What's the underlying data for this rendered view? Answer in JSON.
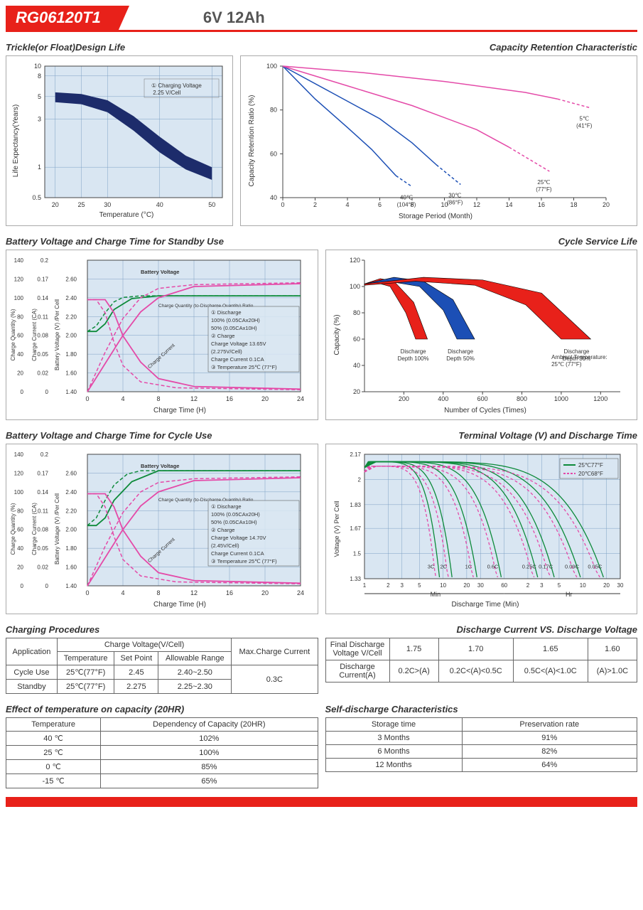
{
  "header": {
    "model": "RG06120T1",
    "spec": "6V  12Ah"
  },
  "colors": {
    "red": "#e8211a",
    "navy": "#1d2c6b",
    "green": "#0d8a3a",
    "magenta": "#e44aa8",
    "blue": "#1c4fb5",
    "black": "#000",
    "grid_bg": "#d9e6f2",
    "grid_line": "#7da0c4",
    "border": "#888"
  },
  "chart1": {
    "title": "Trickle(or Float)Design Life",
    "xlabel": "Temperature (°C)",
    "ylabel": "Life Expectancy(Years)",
    "xticks": [
      20,
      25,
      30,
      40,
      50
    ],
    "yticks": [
      0.5,
      1,
      3,
      5,
      8,
      10
    ],
    "note": "① Charging Voltage\n   2.25 V/Cell",
    "band_upper": [
      [
        20,
        5.5
      ],
      [
        25,
        5.3
      ],
      [
        30,
        4.6
      ],
      [
        35,
        3.2
      ],
      [
        40,
        2.0
      ],
      [
        45,
        1.3
      ],
      [
        50,
        1.0
      ]
    ],
    "band_lower": [
      [
        20,
        4.4
      ],
      [
        25,
        4.2
      ],
      [
        30,
        3.5
      ],
      [
        35,
        2.3
      ],
      [
        40,
        1.4
      ],
      [
        45,
        0.95
      ],
      [
        50,
        0.75
      ]
    ],
    "band_color": "#1d2c6b"
  },
  "chart2": {
    "title": "Capacity Retention Characteristic",
    "xlabel": "Storage Period (Month)",
    "ylabel": "Capacity Retention Ratio (%)",
    "xticks": [
      0,
      2,
      4,
      6,
      8,
      10,
      12,
      14,
      16,
      18,
      20
    ],
    "yticks": [
      40,
      60,
      80,
      100
    ],
    "series": [
      {
        "label": "40℃\n(104°F)",
        "color": "#1c4fb5",
        "dash": false,
        "pts": [
          [
            0,
            100
          ],
          [
            2,
            85
          ],
          [
            4,
            72
          ],
          [
            5.5,
            62
          ],
          [
            7,
            50
          ]
        ],
        "ext": [
          [
            7,
            50
          ],
          [
            8,
            45
          ]
        ]
      },
      {
        "label": "30℃\n(86°F)",
        "color": "#1c4fb5",
        "dash": false,
        "pts": [
          [
            0,
            100
          ],
          [
            3,
            88
          ],
          [
            6,
            76
          ],
          [
            8,
            65
          ],
          [
            9.5,
            55
          ]
        ],
        "ext": [
          [
            9.5,
            55
          ],
          [
            11,
            46
          ]
        ]
      },
      {
        "label": "25℃\n(77°F)",
        "color": "#e44aa8",
        "dash": false,
        "pts": [
          [
            0,
            100
          ],
          [
            4,
            91
          ],
          [
            8,
            82
          ],
          [
            12,
            71
          ],
          [
            14,
            63
          ]
        ],
        "ext": [
          [
            14,
            63
          ],
          [
            16.5,
            52
          ]
        ]
      },
      {
        "label": "5℃\n(41°F)",
        "color": "#e44aa8",
        "dash": false,
        "pts": [
          [
            0,
            100
          ],
          [
            5,
            97
          ],
          [
            10,
            93
          ],
          [
            15,
            88
          ],
          [
            17,
            85
          ]
        ],
        "ext": [
          [
            17,
            85
          ],
          [
            19,
            81
          ]
        ]
      }
    ]
  },
  "chart3": {
    "title": "Battery Voltage and Charge Time for Standby Use",
    "xlabel": "Charge Time (H)",
    "ylabels": [
      "Charge Quantity (%)",
      "Charge Current (CA)",
      "Battery Voltage (V) /Per Cell"
    ],
    "xticks": [
      0,
      4,
      8,
      12,
      16,
      20,
      24
    ],
    "y1ticks": [
      0,
      20,
      40,
      60,
      80,
      100,
      120,
      140
    ],
    "y2ticks": [
      0,
      0.02,
      0.05,
      0.08,
      0.11,
      0.14,
      0.17,
      0.2
    ],
    "y3ticks": [
      1.4,
      1.6,
      1.8,
      2.0,
      2.2,
      2.4,
      2.6
    ],
    "annotations": [
      "Battery Voltage",
      "Charge Quantity (to-Discharge Quantity) Ratio",
      "Charge Current"
    ],
    "legend": [
      "① Discharge",
      "   100% (0.05CAx20H)",
      "   50% (0.05CAx10H)",
      "② Charge",
      "   Charge Voltage 13.65V",
      "   (2.275V/Cell)",
      "   Charge Current 0.1CA",
      "③ Temperature 25℃ (77°F)"
    ],
    "voltage_solid": {
      "color": "#0d8a3a",
      "pts": [
        [
          0,
          1.95
        ],
        [
          1,
          1.95
        ],
        [
          2,
          2.02
        ],
        [
          3,
          2.15
        ],
        [
          5,
          2.25
        ],
        [
          8,
          2.275
        ],
        [
          24,
          2.275
        ]
      ]
    },
    "voltage_dash": {
      "color": "#0d8a3a",
      "pts": [
        [
          0,
          1.95
        ],
        [
          1,
          2.0
        ],
        [
          2,
          2.12
        ],
        [
          3,
          2.22
        ],
        [
          4,
          2.26
        ],
        [
          6,
          2.275
        ],
        [
          24,
          2.275
        ]
      ]
    },
    "qty_solid": {
      "color": "#e44aa8",
      "pts": [
        [
          0,
          0
        ],
        [
          2,
          30
        ],
        [
          4,
          60
        ],
        [
          6,
          85
        ],
        [
          8,
          100
        ],
        [
          12,
          112
        ],
        [
          24,
          115
        ]
      ]
    },
    "qty_dash": {
      "color": "#e44aa8",
      "pts": [
        [
          0,
          0
        ],
        [
          2,
          42
        ],
        [
          4,
          78
        ],
        [
          6,
          100
        ],
        [
          8,
          110
        ],
        [
          12,
          114
        ],
        [
          24,
          116
        ]
      ]
    },
    "current_solid": {
      "color": "#e44aa8",
      "pts": [
        [
          0,
          0.14
        ],
        [
          2,
          0.14
        ],
        [
          3,
          0.12
        ],
        [
          4,
          0.085
        ],
        [
          6,
          0.045
        ],
        [
          8,
          0.02
        ],
        [
          12,
          0.008
        ],
        [
          24,
          0.004
        ]
      ]
    },
    "current_dash": {
      "color": "#e44aa8",
      "pts": [
        [
          0,
          0.14
        ],
        [
          1,
          0.14
        ],
        [
          2,
          0.12
        ],
        [
          3,
          0.075
        ],
        [
          4,
          0.04
        ],
        [
          6,
          0.015
        ],
        [
          10,
          0.006
        ],
        [
          24,
          0.003
        ]
      ]
    }
  },
  "chart4": {
    "title": "Cycle Service Life",
    "xlabel": "Number of Cycles (Times)",
    "ylabel": "Capacity (%)",
    "xticks": [
      200,
      400,
      600,
      800,
      1000,
      1200
    ],
    "yticks": [
      20,
      40,
      60,
      80,
      100,
      120
    ],
    "note": "Ambient Temperature:\n25℃ (77°F)",
    "bands": [
      {
        "label": "Discharge\nDepth 100%",
        "color": "#e8211a",
        "upper": [
          [
            0,
            102
          ],
          [
            80,
            106
          ],
          [
            150,
            104
          ],
          [
            250,
            88
          ],
          [
            320,
            60
          ]
        ],
        "lower": [
          [
            0,
            101
          ],
          [
            60,
            103
          ],
          [
            130,
            100
          ],
          [
            210,
            80
          ],
          [
            260,
            60
          ]
        ]
      },
      {
        "label": "Discharge\nDepth 50%",
        "color": "#1c4fb5",
        "upper": [
          [
            0,
            102
          ],
          [
            150,
            107
          ],
          [
            300,
            104
          ],
          [
            450,
            90
          ],
          [
            560,
            60
          ]
        ],
        "lower": [
          [
            0,
            101
          ],
          [
            120,
            104
          ],
          [
            280,
            100
          ],
          [
            400,
            82
          ],
          [
            470,
            60
          ]
        ]
      },
      {
        "label": "Discharge\nDepth 30%",
        "color": "#e8211a",
        "upper": [
          [
            0,
            102
          ],
          [
            300,
            107
          ],
          [
            600,
            105
          ],
          [
            900,
            95
          ],
          [
            1150,
            60
          ]
        ],
        "lower": [
          [
            0,
            101
          ],
          [
            260,
            104
          ],
          [
            560,
            101
          ],
          [
            820,
            86
          ],
          [
            1000,
            60
          ]
        ]
      }
    ]
  },
  "chart5": {
    "title": "Battery Voltage and Charge Time for Cycle Use",
    "xlabel": "Charge Time (H)",
    "legend": [
      "① Discharge",
      "   100% (0.05CAx20H)",
      "   50% (0.05CAx10H)",
      "② Charge",
      "   Charge Voltage 14.70V",
      "   (2.45V/Cell)",
      "   Charge Current 0.1CA",
      "③ Temperature 25℃ (77°F)"
    ],
    "voltage_solid": {
      "color": "#0d8a3a",
      "pts": [
        [
          0,
          1.95
        ],
        [
          1,
          1.95
        ],
        [
          2,
          2.02
        ],
        [
          3,
          2.18
        ],
        [
          5,
          2.35
        ],
        [
          8,
          2.45
        ],
        [
          24,
          2.45
        ]
      ]
    },
    "voltage_dash": {
      "color": "#0d8a3a",
      "pts": [
        [
          0,
          1.95
        ],
        [
          1,
          2.02
        ],
        [
          2,
          2.18
        ],
        [
          3,
          2.32
        ],
        [
          4.5,
          2.42
        ],
        [
          6,
          2.45
        ],
        [
          24,
          2.45
        ]
      ]
    },
    "qty_solid": {
      "color": "#e44aa8",
      "pts": [
        [
          0,
          0
        ],
        [
          2,
          30
        ],
        [
          4,
          60
        ],
        [
          6,
          85
        ],
        [
          8,
          100
        ],
        [
          12,
          112
        ],
        [
          24,
          115
        ]
      ]
    },
    "qty_dash": {
      "color": "#e44aa8",
      "pts": [
        [
          0,
          0
        ],
        [
          2,
          42
        ],
        [
          4,
          78
        ],
        [
          6,
          100
        ],
        [
          8,
          110
        ],
        [
          12,
          114
        ],
        [
          24,
          116
        ]
      ]
    },
    "current_solid": {
      "color": "#e44aa8",
      "pts": [
        [
          0,
          0.14
        ],
        [
          2,
          0.14
        ],
        [
          3,
          0.12
        ],
        [
          4,
          0.085
        ],
        [
          6,
          0.045
        ],
        [
          8,
          0.02
        ],
        [
          12,
          0.008
        ],
        [
          24,
          0.004
        ]
      ]
    },
    "current_dash": {
      "color": "#e44aa8",
      "pts": [
        [
          0,
          0.14
        ],
        [
          1,
          0.14
        ],
        [
          2,
          0.12
        ],
        [
          3,
          0.075
        ],
        [
          4,
          0.04
        ],
        [
          6,
          0.015
        ],
        [
          10,
          0.006
        ],
        [
          24,
          0.003
        ]
      ]
    }
  },
  "chart6": {
    "title": "Terminal Voltage (V) and Discharge Time",
    "xlabel": "Discharge Time (Min)",
    "ylabel": "Voltage (V) Per Cell",
    "legend": [
      {
        "label": "25℃77°F",
        "color": "#0d8a3a",
        "dash": false
      },
      {
        "label": "20℃68°F",
        "color": "#e44aa8",
        "dash": true
      }
    ],
    "yticks": [
      1.33,
      1.5,
      1.67,
      1.83,
      2.0,
      2.17
    ],
    "xsections": [
      "1",
      "2",
      "3",
      "5",
      "10",
      "20",
      "30",
      "60",
      "2",
      "3",
      "5",
      "10",
      "20",
      "30"
    ],
    "xunits": [
      "Min",
      "Hr"
    ],
    "curves": [
      {
        "label": "3C",
        "t_end": 9
      },
      {
        "label": "2C",
        "t_end": 13
      },
      {
        "label": "1C",
        "t_end": 27
      },
      {
        "label": "0.6C",
        "t_end": 55
      },
      {
        "label": "0.25C",
        "t_end": 160
      },
      {
        "label": "0.17C",
        "t_end": 260
      },
      {
        "label": "0.09C",
        "t_end": 560
      },
      {
        "label": "0.05C",
        "t_end": 1100
      }
    ]
  },
  "table_charging": {
    "title": "Charging Procedures",
    "headers_top": [
      "Application",
      "Charge Voltage(V/Cell)",
      "Max.Charge Current"
    ],
    "headers_sub": [
      "Temperature",
      "Set Point",
      "Allowable Range"
    ],
    "rows": [
      [
        "Cycle Use",
        "25℃(77°F)",
        "2.45",
        "2.40~2.50"
      ],
      [
        "Standby",
        "25℃(77°F)",
        "2.275",
        "2.25~2.30"
      ]
    ],
    "max_current": "0.3C"
  },
  "table_discharge": {
    "title": "Discharge Current VS. Discharge Voltage",
    "row1": [
      "Final Discharge\nVoltage V/Cell",
      "1.75",
      "1.70",
      "1.65",
      "1.60"
    ],
    "row2": [
      "Discharge\nCurrent(A)",
      "0.2C>(A)",
      "0.2C<(A)<0.5C",
      "0.5C<(A)<1.0C",
      "(A)>1.0C"
    ]
  },
  "table_temp": {
    "title": "Effect of temperature on capacity (20HR)",
    "headers": [
      "Temperature",
      "Dependency of Capacity (20HR)"
    ],
    "rows": [
      [
        "40 ℃",
        "102%"
      ],
      [
        "25 ℃",
        "100%"
      ],
      [
        "0 ℃",
        "85%"
      ],
      [
        "-15 ℃",
        "65%"
      ]
    ]
  },
  "table_self": {
    "title": "Self-discharge Characteristics",
    "headers": [
      "Storage time",
      "Preservation rate"
    ],
    "rows": [
      [
        "3 Months",
        "91%"
      ],
      [
        "6 Months",
        "82%"
      ],
      [
        "12 Months",
        "64%"
      ]
    ]
  }
}
